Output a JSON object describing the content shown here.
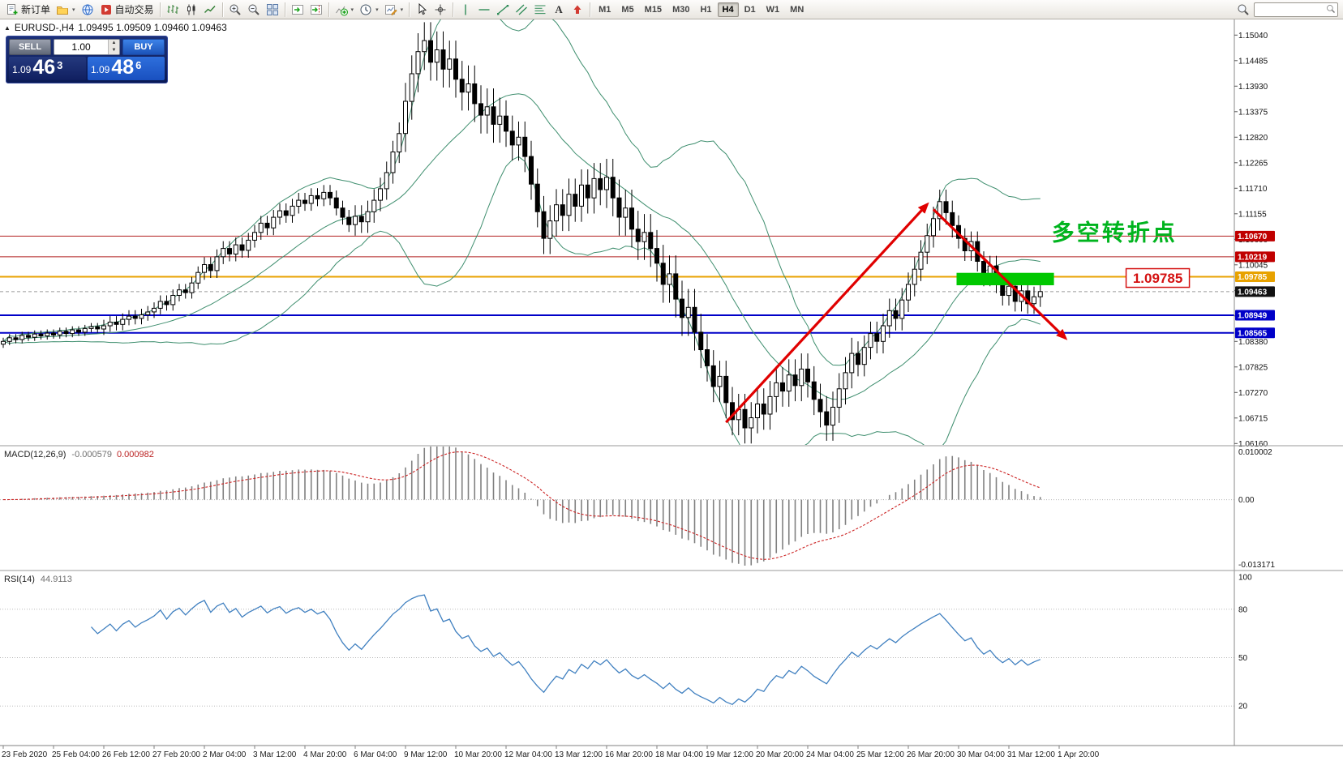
{
  "window": {
    "title_symbol": "EURUSD-,H4",
    "title_ohlc": "1.09495 1.09509 1.09460 1.09463"
  },
  "toolbar": {
    "new_order": "新订单",
    "auto_trading": "自动交易",
    "timeframes": [
      "M1",
      "M5",
      "M15",
      "M30",
      "H1",
      "H4",
      "D1",
      "W1",
      "MN"
    ],
    "active_timeframe": "H4",
    "search_placeholder": ""
  },
  "one_click": {
    "sell_label": "SELL",
    "buy_label": "BUY",
    "volume": "1.00",
    "bid": {
      "base": "1.09",
      "pips": "46",
      "frac": "3"
    },
    "ask": {
      "base": "1.09",
      "pips": "48",
      "frac": "6"
    }
  },
  "chart_data": [
    {
      "type": "candlestick",
      "symbol": "EURUSD-",
      "timeframe": "H4",
      "ylim": [
        1.0613,
        1.1538
      ],
      "first_open": 1.0832,
      "closes": [
        1.0838,
        1.0846,
        1.0842,
        1.0851,
        1.0847,
        1.0854,
        1.085,
        1.0856,
        1.0852,
        1.086,
        1.0855,
        1.0863,
        1.0858,
        1.0866,
        1.087,
        1.0865,
        1.0872,
        1.088,
        1.0875,
        1.0886,
        1.0893,
        1.0888,
        1.0896,
        1.0902,
        1.091,
        1.0925,
        1.0918,
        1.0938,
        1.095,
        1.0944,
        1.0965,
        1.0988,
        1.1005,
        1.0992,
        1.1022,
        1.104,
        1.1028,
        1.1048,
        1.1036,
        1.1058,
        1.1075,
        1.1095,
        1.1085,
        1.1108,
        1.1122,
        1.1112,
        1.1132,
        1.1145,
        1.1138,
        1.1155,
        1.1148,
        1.1162,
        1.115,
        1.1128,
        1.1108,
        1.1092,
        1.111,
        1.1098,
        1.112,
        1.1145,
        1.117,
        1.1205,
        1.125,
        1.129,
        1.136,
        1.142,
        1.1468,
        1.1492,
        1.1445,
        1.1472,
        1.143,
        1.1452,
        1.1408,
        1.138,
        1.1398,
        1.1355,
        1.133,
        1.1348,
        1.131,
        1.1328,
        1.1295,
        1.1265,
        1.1282,
        1.124,
        1.118,
        1.112,
        1.1062,
        1.11,
        1.1135,
        1.1112,
        1.1158,
        1.1132,
        1.1178,
        1.115,
        1.1192,
        1.1168,
        1.1195,
        1.115,
        1.1108,
        1.1128,
        1.1082,
        1.1055,
        1.1075,
        1.104,
        1.1008,
        1.0962,
        1.0985,
        1.093,
        1.089,
        1.0912,
        1.0858,
        1.082,
        1.0785,
        1.074,
        1.0762,
        1.0705,
        1.0668,
        1.069,
        1.065,
        1.0672,
        1.0702,
        1.068,
        1.0718,
        1.0748,
        1.073,
        1.0765,
        1.0742,
        1.0778,
        1.075,
        1.0712,
        1.0685,
        1.0656,
        1.0695,
        1.0735,
        1.077,
        1.0812,
        1.0788,
        1.0825,
        1.0855,
        1.0838,
        1.0872,
        1.0905,
        1.0888,
        1.0928,
        1.0962,
        1.0995,
        1.1032,
        1.1068,
        1.1105,
        1.1142,
        1.1118,
        1.109,
        1.1062,
        1.1035,
        1.1055,
        1.1012,
        1.098,
        1.1002,
        1.0965,
        1.0938,
        1.0958,
        1.0925,
        1.0948,
        1.092,
        1.0935,
        1.09463
      ],
      "wick_profile": [
        {
          "to": 15,
          "w": 0.0008
        },
        {
          "to": 31,
          "w": 0.0013
        },
        {
          "to": 55,
          "w": 0.0016
        },
        {
          "to": 63,
          "w": 0.0024
        },
        {
          "to": 79,
          "w": 0.004
        },
        {
          "to": 95,
          "w": 0.0034
        },
        {
          "to": 111,
          "w": 0.004
        },
        {
          "to": 135,
          "w": 0.0034
        },
        {
          "to": 151,
          "w": 0.0026
        },
        {
          "to": 165,
          "w": 0.0022
        }
      ],
      "bollinger": {
        "period": 20,
        "deviation": 2
      },
      "x_labels": [
        "23 Feb 2020",
        "25 Feb 04:00",
        "26 Feb 12:00",
        "27 Feb 20:00",
        "2 Mar 04:00",
        "3 Mar 12:00",
        "4 Mar 20:00",
        "6 Mar 04:00",
        "9 Mar 12:00",
        "10 Mar 20:00",
        "12 Mar 04:00",
        "13 Mar 12:00",
        "16 Mar 20:00",
        "18 Mar 04:00",
        "19 Mar 12:00",
        "20 Mar 20:00",
        "24 Mar 04:00",
        "25 Mar 12:00",
        "26 Mar 20:00",
        "30 Mar 04:00",
        "31 Mar 12:00",
        "1 Apr 20:00"
      ],
      "label_every": 8,
      "y_axis_labels": [
        "1.15040",
        "1.14485",
        "1.13930",
        "1.13375",
        "1.12820",
        "1.12265",
        "1.11710",
        "1.11155",
        "1.10600",
        "1.10045",
        "1.09490",
        "1.08935",
        "1.08380",
        "1.07825",
        "1.07270",
        "1.06715",
        "1.06160"
      ],
      "markers": [
        {
          "v": 1.1067,
          "t": "1.10670",
          "bg": "#c00000"
        },
        {
          "v": 1.10219,
          "t": "1.10219",
          "bg": "#c00000"
        },
        {
          "v": 1.09785,
          "t": "1.09785",
          "bg": "#e8a200"
        },
        {
          "v": 1.09463,
          "t": "1.09463",
          "bg": "#111111"
        },
        {
          "v": 1.08949,
          "t": "1.08949",
          "bg": "#0000c8"
        },
        {
          "v": 1.08565,
          "t": "1.08565",
          "bg": "#0000c8"
        }
      ],
      "hlines": [
        {
          "v": 1.1067,
          "color": "#b22222",
          "w": 1
        },
        {
          "v": 1.10219,
          "color": "#b22222",
          "w": 1
        },
        {
          "v": 1.09785,
          "color": "#e8a200",
          "w": 2
        },
        {
          "v": 1.09463,
          "color": "#9a9a9a",
          "w": 1,
          "dash": "4,3"
        },
        {
          "v": 1.08949,
          "color": "#0000c8",
          "w": 2
        },
        {
          "v": 1.08565,
          "color": "#0000c8",
          "w": 2
        }
      ],
      "annotations": {
        "up_arrow": {
          "from": [
            115,
            1.0662
          ],
          "to": [
            147,
            1.1136
          ]
        },
        "down_arrow": {
          "from": [
            148,
            1.1125
          ],
          "to": [
            169,
            1.0845
          ]
        },
        "zone": {
          "i1": 152,
          "i2": 167.5,
          "top": 1.0987,
          "bottom": 1.096
        },
        "label_text": {
          "i": 166.8,
          "price": 1.1058,
          "text": "多空转折点"
        },
        "price_tag": {
          "i": 179.3,
          "price": 1.0975,
          "text": "1.09785"
        }
      },
      "colors": {
        "bull": "#ffffff",
        "bear": "#000000",
        "wick": "#000000",
        "bollinger": "#3e8e6e",
        "arrow": "#e00000",
        "zone": "#00c800",
        "text_green": "#00b41e",
        "tag_red": "#d41111"
      }
    },
    {
      "type": "bar",
      "name": "MACD(12,26,9)",
      "derived_from": "candlestick closes",
      "params": {
        "fast": 12,
        "slow": 26,
        "signal": 9
      },
      "current_values": [
        "-0.000579",
        "0.000982"
      ],
      "y_axis": [
        "0.010002",
        "0.00",
        "-0.013171"
      ],
      "scale": {
        "top": 0.010002,
        "bottom": -0.013171
      },
      "colors": {
        "histogram": "#808080",
        "signal": "#cc2222"
      }
    },
    {
      "type": "line",
      "name": "RSI(14)",
      "derived_from": "candlestick closes",
      "period": 14,
      "current_value": "44.9113",
      "range": [
        0,
        100
      ],
      "levels": [
        80,
        50,
        20
      ],
      "y_axis": [
        "100",
        "80",
        "50",
        "20"
      ],
      "colors": {
        "line": "#4080c0",
        "level": "#b8b8b8"
      }
    }
  ]
}
